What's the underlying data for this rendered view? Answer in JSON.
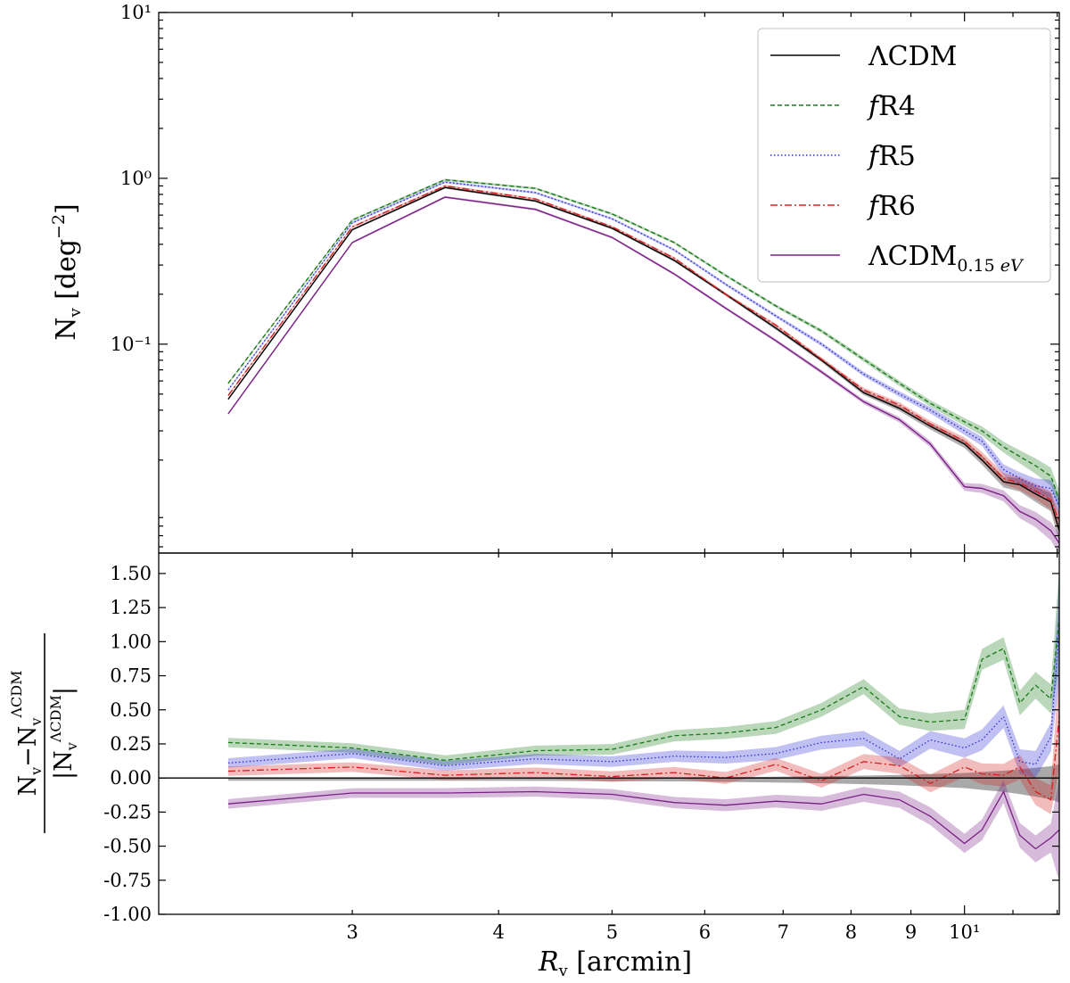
{
  "chart_data": [
    {
      "type": "line",
      "panel": "top",
      "yscale": "log",
      "xscale": "log",
      "ylabel": "Nᵥ [deg⁻²]",
      "ylim": [
        0.0055,
        10
      ],
      "xlim": [
        2.05,
        12.05
      ],
      "yticks": [
        {
          "label": "10¹",
          "value": 10
        },
        {
          "label": "10⁰",
          "value": 1
        },
        {
          "label": "10⁻¹",
          "value": 0.1
        }
      ],
      "legend_position": "top-right",
      "x": [
        2.35,
        3.0,
        3.6,
        4.3,
        5.0,
        5.65,
        6.25,
        6.9,
        7.55,
        8.2,
        8.8,
        9.35,
        10.0,
        10.35,
        10.8,
        11.15,
        11.5,
        11.85,
        12.05
      ],
      "series": [
        {
          "name": "ΛCDM",
          "color": "#000000",
          "style": "solid",
          "values": [
            0.0465,
            0.49,
            0.88,
            0.73,
            0.5,
            0.32,
            0.2,
            0.125,
            0.08,
            0.051,
            0.041,
            0.032,
            0.025,
            0.02,
            0.0148,
            0.0142,
            0.0125,
            0.0112,
            0.0075
          ]
        },
        {
          "name": "fR4",
          "color": "#1a7a1a",
          "style": "dashed",
          "values": [
            0.058,
            0.56,
            0.98,
            0.87,
            0.61,
            0.41,
            0.26,
            0.17,
            0.12,
            0.081,
            0.058,
            0.044,
            0.034,
            0.03,
            0.024,
            0.021,
            0.0185,
            0.016,
            0.0115
          ]
        },
        {
          "name": "fR5",
          "color": "#2f2fd8",
          "style": "dotted",
          "values": [
            0.053,
            0.54,
            0.95,
            0.82,
            0.57,
            0.37,
            0.23,
            0.148,
            0.1,
            0.066,
            0.05,
            0.04,
            0.03,
            0.026,
            0.0175,
            0.0155,
            0.014,
            0.0135,
            0.0105
          ]
        },
        {
          "name": "fR6",
          "color": "#d42020",
          "style": "dashdot",
          "values": [
            0.049,
            0.51,
            0.9,
            0.75,
            0.51,
            0.33,
            0.2,
            0.13,
            0.081,
            0.053,
            0.043,
            0.033,
            0.026,
            0.021,
            0.0155,
            0.0145,
            0.013,
            0.0115,
            0.0085
          ]
        },
        {
          "name": "ΛCDM₀.₁₅ eV",
          "color": "#7a1f85",
          "style": "solid",
          "values": [
            0.038,
            0.41,
            0.77,
            0.65,
            0.44,
            0.265,
            0.165,
            0.105,
            0.068,
            0.045,
            0.035,
            0.025,
            0.0138,
            0.0135,
            0.0122,
            0.0098,
            0.0088,
            0.0075,
            0.0063
          ]
        }
      ]
    },
    {
      "type": "line",
      "panel": "bottom",
      "ylabel": "(Nᵥ − Nᵥ ΛCDM) / |Nᵥ ΛCDM|",
      "xlabel": "Rᵥ [arcmin]",
      "ylim": [
        -1.0,
        1.65
      ],
      "xlim": [
        2.05,
        12.05
      ],
      "yticks": [
        "1.50",
        "1.25",
        "1.00",
        "0.75",
        "0.50",
        "0.25",
        "0.00",
        "-0.25",
        "-0.50",
        "-0.75",
        "-1.00"
      ],
      "xticks": [
        {
          "label": "3",
          "value": 3
        },
        {
          "label": "4",
          "value": 4
        },
        {
          "label": "5",
          "value": 5
        },
        {
          "label": "6",
          "value": 6
        },
        {
          "label": "7",
          "value": 7
        },
        {
          "label": "8",
          "value": 8
        },
        {
          "label": "9",
          "value": 9
        },
        {
          "label": "10¹",
          "value": 10
        }
      ],
      "x": [
        2.35,
        3.0,
        3.6,
        4.3,
        5.0,
        5.65,
        6.25,
        6.9,
        7.55,
        8.2,
        8.8,
        9.35,
        10.0,
        10.35,
        10.8,
        11.15,
        11.5,
        11.85,
        12.05
      ],
      "series": [
        {
          "name": "ΛCDM",
          "color": "#000000",
          "values": [
            0,
            0,
            0,
            0,
            0,
            0,
            0,
            0,
            0,
            0,
            0,
            0,
            0,
            0,
            0,
            0,
            0,
            0,
            0
          ]
        },
        {
          "name": "fR4",
          "color": "#1a7a1a",
          "values": [
            0.26,
            0.22,
            0.13,
            0.2,
            0.21,
            0.31,
            0.33,
            0.37,
            0.5,
            0.67,
            0.45,
            0.41,
            0.43,
            0.87,
            0.95,
            0.55,
            0.68,
            0.58,
            1.17
          ]
        },
        {
          "name": "fR5",
          "color": "#2f2fd8",
          "values": [
            0.11,
            0.18,
            0.09,
            0.14,
            0.12,
            0.16,
            0.15,
            0.18,
            0.26,
            0.29,
            0.14,
            0.28,
            0.22,
            0.28,
            0.45,
            0.12,
            0.1,
            0.3,
            1.1
          ]
        },
        {
          "name": "fR6",
          "color": "#d42020",
          "values": [
            0.05,
            0.08,
            0.02,
            0.04,
            0.01,
            0.04,
            0.0,
            0.1,
            -0.02,
            0.12,
            0.09,
            -0.04,
            0.08,
            0.03,
            0.02,
            0.08,
            -0.1,
            -0.16,
            0.45
          ]
        },
        {
          "name": "ΛCDM₀.₁₅ eV",
          "color": "#7a1f85",
          "values": [
            -0.19,
            -0.11,
            -0.11,
            -0.1,
            -0.12,
            -0.18,
            -0.2,
            -0.17,
            -0.19,
            -0.12,
            -0.16,
            -0.28,
            -0.48,
            -0.38,
            -0.1,
            -0.42,
            -0.52,
            -0.44,
            -0.38
          ]
        }
      ]
    }
  ]
}
